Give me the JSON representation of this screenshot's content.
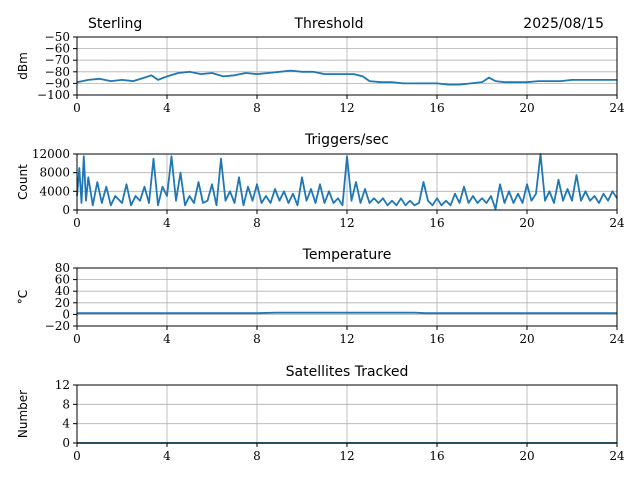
{
  "header": {
    "site": "Sterling",
    "title": "Threshold",
    "date": "2025/08/15"
  },
  "chart_data": [
    {
      "type": "line",
      "title": "Threshold",
      "ylabel": "dBm",
      "xlim": [
        0,
        24
      ],
      "ylim": [
        -100,
        -50
      ],
      "xticks": [
        0,
        4,
        8,
        12,
        16,
        20,
        24
      ],
      "yticks": [
        -50,
        -60,
        -70,
        -80,
        -90,
        -100
      ],
      "ytick_labels": [
        "−50",
        "−60",
        "−70",
        "−80",
        "−90",
        "−100"
      ],
      "grid": true,
      "color": "#1f77b4",
      "series": [
        {
          "x": [
            0,
            0.5,
            1,
            1.5,
            2,
            2.5,
            3,
            3.3,
            3.6,
            4,
            4.5,
            5,
            5.5,
            6,
            6.5,
            7,
            7.5,
            8,
            8.5,
            9,
            9.5,
            10,
            10.5,
            11,
            11.5,
            12,
            12.3,
            12.7,
            13,
            13.5,
            14,
            14.5,
            15,
            15.5,
            16,
            16.5,
            17,
            17.5,
            18,
            18.3,
            18.6,
            19,
            19.5,
            20,
            20.5,
            21,
            21.5,
            22,
            22.5,
            23,
            23.5,
            24
          ],
          "y": [
            -89,
            -87,
            -86,
            -88,
            -87,
            -88,
            -85,
            -83,
            -87,
            -84,
            -81,
            -80,
            -82,
            -81,
            -84,
            -83,
            -81,
            -82,
            -81,
            -80,
            -79,
            -80,
            -80,
            -82,
            -82,
            -82,
            -82,
            -84,
            -88,
            -89,
            -89,
            -90,
            -90,
            -90,
            -90,
            -91,
            -91,
            -90,
            -89,
            -85,
            -88,
            -89,
            -89,
            -89,
            -88,
            -88,
            -88,
            -87,
            -87,
            -87,
            -87,
            -87
          ]
        }
      ]
    },
    {
      "type": "line",
      "title": "Triggers/sec",
      "ylabel": "Count",
      "xlim": [
        0,
        24
      ],
      "ylim": [
        0,
        12000
      ],
      "xticks": [
        0,
        4,
        8,
        12,
        16,
        20,
        24
      ],
      "yticks": [
        0,
        4000,
        8000,
        12000
      ],
      "grid": true,
      "color": "#1f77b4",
      "series": [
        {
          "x": [
            0,
            0.1,
            0.2,
            0.3,
            0.4,
            0.5,
            0.7,
            0.9,
            1.1,
            1.3,
            1.5,
            1.7,
            2.0,
            2.2,
            2.4,
            2.6,
            2.8,
            3.0,
            3.2,
            3.4,
            3.6,
            3.8,
            4.0,
            4.2,
            4.4,
            4.6,
            4.8,
            5.0,
            5.2,
            5.4,
            5.6,
            5.8,
            6.0,
            6.2,
            6.4,
            6.6,
            6.8,
            7.0,
            7.2,
            7.4,
            7.6,
            7.8,
            8.0,
            8.2,
            8.4,
            8.6,
            8.8,
            9.0,
            9.2,
            9.4,
            9.6,
            9.8,
            10.0,
            10.2,
            10.4,
            10.6,
            10.8,
            11.0,
            11.2,
            11.4,
            11.6,
            11.8,
            12.0,
            12.2,
            12.4,
            12.6,
            12.8,
            13.0,
            13.2,
            13.4,
            13.6,
            13.8,
            14.0,
            14.2,
            14.4,
            14.6,
            14.8,
            15.0,
            15.2,
            15.4,
            15.6,
            15.8,
            16.0,
            16.2,
            16.4,
            16.6,
            16.8,
            17.0,
            17.2,
            17.4,
            17.6,
            17.8,
            18.0,
            18.2,
            18.4,
            18.6,
            18.8,
            19.0,
            19.2,
            19.4,
            19.6,
            19.8,
            20.0,
            20.2,
            20.4,
            20.6,
            20.8,
            21.0,
            21.2,
            21.4,
            21.6,
            21.8,
            22.0,
            22.2,
            22.4,
            22.6,
            22.8,
            23.0,
            23.2,
            23.4,
            23.6,
            23.8,
            24.0
          ],
          "y": [
            3000,
            9000,
            1500,
            11500,
            2000,
            7000,
            1000,
            6000,
            1500,
            5000,
            1000,
            3000,
            1500,
            5500,
            1000,
            3000,
            2000,
            5000,
            1500,
            11000,
            1000,
            5000,
            3000,
            11500,
            2000,
            8000,
            1000,
            3000,
            1500,
            6000,
            1500,
            2000,
            5500,
            1000,
            11000,
            2000,
            4000,
            1500,
            7000,
            1000,
            5000,
            2000,
            5500,
            1500,
            3000,
            1500,
            4500,
            2000,
            4000,
            1500,
            3500,
            1000,
            7000,
            2000,
            4500,
            1500,
            5500,
            1500,
            4000,
            1500,
            2500,
            1000,
            11500,
            2000,
            6000,
            1500,
            4500,
            1500,
            2500,
            1500,
            2500,
            1000,
            2000,
            1000,
            2500,
            1000,
            2000,
            1000,
            1500,
            6000,
            2000,
            1000,
            2500,
            1000,
            2000,
            1000,
            3500,
            1500,
            5000,
            1500,
            3000,
            1500,
            2500,
            1500,
            3000,
            200,
            5500,
            1500,
            4000,
            1500,
            3500,
            1500,
            5500,
            2000,
            3500,
            12000,
            2000,
            4000,
            1500,
            6500,
            2000,
            4500,
            2000,
            7500,
            2000,
            4000,
            2000,
            3000,
            1500,
            3500,
            2000,
            4000,
            2500
          ]
        }
      ]
    },
    {
      "type": "line",
      "title": "Temperature",
      "ylabel": "°C",
      "xlim": [
        0,
        24
      ],
      "ylim": [
        -20,
        80
      ],
      "xticks": [
        0,
        4,
        8,
        12,
        16,
        20,
        24
      ],
      "yticks": [
        -20,
        0,
        20,
        40,
        60,
        80
      ],
      "ytick_labels": [
        "−20",
        "0",
        "20",
        "40",
        "60",
        "80"
      ],
      "grid": true,
      "color": "#1f77b4",
      "series": [
        {
          "x": [
            0,
            4,
            8,
            8.8,
            9.5,
            10,
            11,
            12,
            13,
            14,
            15,
            15.5,
            16,
            20,
            24
          ],
          "y": [
            2,
            2,
            2,
            3,
            3,
            3,
            3,
            3,
            3,
            3,
            3,
            2,
            2,
            2,
            2
          ]
        }
      ]
    },
    {
      "type": "line",
      "title": "Satellites Tracked",
      "ylabel": "Number",
      "xlim": [
        0,
        24
      ],
      "ylim": [
        0,
        12
      ],
      "xticks": [
        0,
        4,
        8,
        12,
        16,
        20,
        24
      ],
      "yticks": [
        0,
        4,
        8,
        12
      ],
      "grid": true,
      "color": "#1f77b4",
      "series": [
        {
          "x": [
            0,
            24
          ],
          "y": [
            0,
            0
          ]
        }
      ]
    }
  ]
}
